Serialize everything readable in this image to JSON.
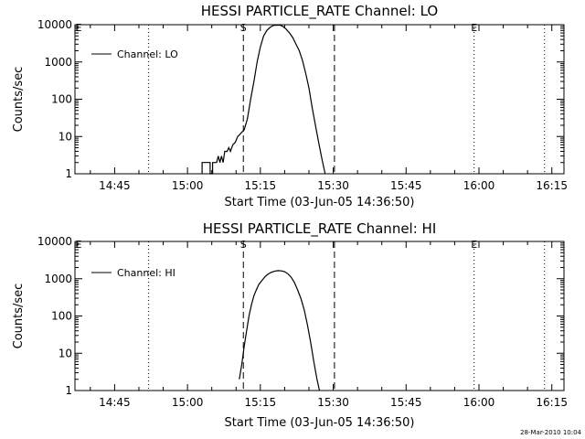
{
  "timestamp": "28-Mar-2010 10:04",
  "chart_data": [
    {
      "type": "line",
      "title": "HESSI PARTICLE_RATE Channel: LO",
      "xlabel": "Start Time (03-Jun-05 14:36:50)",
      "ylabel": "Counts/sec",
      "y_scale": "log",
      "ylim": [
        1,
        10000
      ],
      "xlim": [
        "14:36:50",
        "16:17:30"
      ],
      "x_ticks": [
        "14:45",
        "15:00",
        "15:15",
        "15:30",
        "15:45",
        "16:00",
        "16:15"
      ],
      "y_ticks": [
        "1",
        "10",
        "100",
        "1000",
        "10000"
      ],
      "legend": {
        "position": "top-left",
        "entries": [
          "Channel: LO"
        ]
      },
      "markers": [
        {
          "label": "",
          "time": "14:52:00",
          "style": "dotted"
        },
        {
          "label": "S",
          "time": "15:11:30",
          "style": "dashed"
        },
        {
          "label": "",
          "time": "15:30:15",
          "style": "dashed"
        },
        {
          "label": "E",
          "time": "15:59:00",
          "style": "dotted"
        },
        {
          "label": "",
          "time": "16:13:30",
          "style": "dotted"
        }
      ],
      "edge_labels": [
        "E"
      ],
      "series": [
        {
          "name": "Channel: LO",
          "style": "solid",
          "points": [
            [
              "15:03:00",
              1
            ],
            [
              "15:03:00",
              2
            ],
            [
              "15:04:40",
              2
            ],
            [
              "15:04:40",
              1
            ],
            [
              "15:05:10",
              1
            ],
            [
              "15:05:10",
              2
            ],
            [
              "15:06:00",
              2
            ],
            [
              "15:06:20",
              3
            ],
            [
              "15:06:40",
              2
            ],
            [
              "15:07:00",
              3
            ],
            [
              "15:07:20",
              2
            ],
            [
              "15:07:40",
              4
            ],
            [
              "15:08:10",
              4
            ],
            [
              "15:08:30",
              5
            ],
            [
              "15:08:50",
              4
            ],
            [
              "15:09:20",
              6
            ],
            [
              "15:09:50",
              7
            ],
            [
              "15:10:20",
              10
            ],
            [
              "15:10:40",
              11
            ],
            [
              "15:11:10",
              13
            ],
            [
              "15:11:40",
              15
            ],
            [
              "15:12:20",
              30
            ],
            [
              "15:13:00",
              100
            ],
            [
              "15:13:40",
              300
            ],
            [
              "15:14:20",
              1000
            ],
            [
              "15:15:00",
              2500
            ],
            [
              "15:15:40",
              5000
            ],
            [
              "15:16:20",
              7000
            ],
            [
              "15:17:00",
              8500
            ],
            [
              "15:17:40",
              9500
            ],
            [
              "15:18:20",
              9800
            ],
            [
              "15:19:00",
              9700
            ],
            [
              "15:19:40",
              9000
            ],
            [
              "15:20:20",
              7500
            ],
            [
              "15:21:00",
              6000
            ],
            [
              "15:21:40",
              4500
            ],
            [
              "15:22:20",
              3000
            ],
            [
              "15:23:00",
              2000
            ],
            [
              "15:23:40",
              1100
            ],
            [
              "15:24:20",
              500
            ],
            [
              "15:25:00",
              200
            ],
            [
              "15:25:40",
              60
            ],
            [
              "15:26:20",
              20
            ],
            [
              "15:27:00",
              7
            ],
            [
              "15:27:40",
              2.5
            ],
            [
              "15:28:20",
              1
            ]
          ]
        }
      ]
    },
    {
      "type": "line",
      "title": "HESSI PARTICLE_RATE Channel: HI",
      "xlabel": "Start Time (03-Jun-05 14:36:50)",
      "ylabel": "Counts/sec",
      "y_scale": "log",
      "ylim": [
        1,
        10000
      ],
      "xlim": [
        "14:36:50",
        "16:17:30"
      ],
      "x_ticks": [
        "14:45",
        "15:00",
        "15:15",
        "15:30",
        "15:45",
        "16:00",
        "16:15"
      ],
      "y_ticks": [
        "1",
        "10",
        "100",
        "1000",
        "10000"
      ],
      "legend": {
        "position": "top-left",
        "entries": [
          "Channel: HI"
        ]
      },
      "markers": [
        {
          "label": "",
          "time": "14:52:00",
          "style": "dotted"
        },
        {
          "label": "S",
          "time": "15:11:30",
          "style": "dashed"
        },
        {
          "label": "",
          "time": "15:30:15",
          "style": "dashed"
        },
        {
          "label": "E",
          "time": "15:59:00",
          "style": "dotted"
        },
        {
          "label": "",
          "time": "16:13:30",
          "style": "dotted"
        }
      ],
      "edge_labels": [
        "E"
      ],
      "series": [
        {
          "name": "Channel: HI",
          "style": "solid",
          "points": [
            [
              "15:10:40",
              2
            ],
            [
              "15:11:10",
              5
            ],
            [
              "15:11:40",
              15
            ],
            [
              "15:12:10",
              40
            ],
            [
              "15:12:40",
              100
            ],
            [
              "15:13:10",
              200
            ],
            [
              "15:13:40",
              350
            ],
            [
              "15:14:10",
              500
            ],
            [
              "15:14:40",
              700
            ],
            [
              "15:15:20",
              900
            ],
            [
              "15:16:00",
              1150
            ],
            [
              "15:16:40",
              1350
            ],
            [
              "15:17:20",
              1500
            ],
            [
              "15:18:00",
              1600
            ],
            [
              "15:18:40",
              1650
            ],
            [
              "15:19:20",
              1620
            ],
            [
              "15:20:00",
              1550
            ],
            [
              "15:20:40",
              1350
            ],
            [
              "15:21:20",
              1100
            ],
            [
              "15:22:00",
              800
            ],
            [
              "15:22:40",
              500
            ],
            [
              "15:23:20",
              300
            ],
            [
              "15:24:00",
              150
            ],
            [
              "15:24:40",
              60
            ],
            [
              "15:25:20",
              20
            ],
            [
              "15:26:00",
              6
            ],
            [
              "15:26:40",
              2
            ],
            [
              "15:27:10",
              1
            ]
          ]
        }
      ]
    }
  ]
}
